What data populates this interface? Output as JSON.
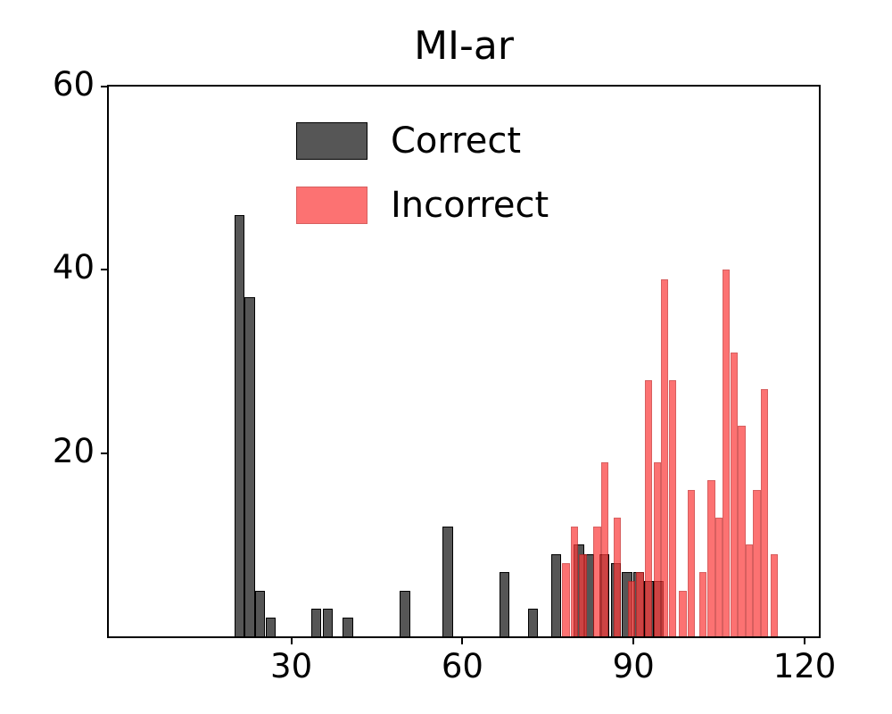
{
  "chart_data": {
    "type": "histogram",
    "title": "MI-ar",
    "xlabel": "",
    "ylabel": "",
    "xlim": [
      -2,
      122.5
    ],
    "ylim": [
      0,
      60
    ],
    "xticks": [
      30,
      60,
      90,
      120
    ],
    "yticks": [
      20,
      40,
      60
    ],
    "grid": false,
    "legend_position": "upper center-left inside",
    "series": [
      {
        "name": "Correct",
        "color": "#565656",
        "edge_color": "#000000",
        "opacity": 1,
        "bin_width": 1.8,
        "bars": [
          {
            "x": 20.0,
            "v": 46
          },
          {
            "x": 21.8,
            "v": 37
          },
          {
            "x": 23.6,
            "v": 5
          },
          {
            "x": 25.5,
            "v": 2
          },
          {
            "x": 33.5,
            "v": 3
          },
          {
            "x": 35.5,
            "v": 3
          },
          {
            "x": 39.0,
            "v": 2
          },
          {
            "x": 49.0,
            "v": 5
          },
          {
            "x": 56.5,
            "v": 12
          },
          {
            "x": 66.5,
            "v": 7
          },
          {
            "x": 71.5,
            "v": 3
          },
          {
            "x": 75.5,
            "v": 9
          },
          {
            "x": 79.5,
            "v": 10
          },
          {
            "x": 81.3,
            "v": 9
          },
          {
            "x": 84.0,
            "v": 9
          },
          {
            "x": 86.0,
            "v": 8
          },
          {
            "x": 88.0,
            "v": 7
          },
          {
            "x": 90.0,
            "v": 7
          },
          {
            "x": 91.8,
            "v": 6
          },
          {
            "x": 93.5,
            "v": 6
          }
        ]
      },
      {
        "name": "Incorrect",
        "color": "#fc3d3d",
        "edge_color": "#c92222",
        "opacity": 0.72,
        "bin_width": 1.3,
        "bars": [
          {
            "x": 77.5,
            "v": 8
          },
          {
            "x": 79.0,
            "v": 12
          },
          {
            "x": 80.5,
            "v": 9
          },
          {
            "x": 83.0,
            "v": 12
          },
          {
            "x": 84.3,
            "v": 19
          },
          {
            "x": 86.5,
            "v": 13
          },
          {
            "x": 89.0,
            "v": 6
          },
          {
            "x": 90.5,
            "v": 7
          },
          {
            "x": 92.0,
            "v": 28
          },
          {
            "x": 93.5,
            "v": 19
          },
          {
            "x": 94.8,
            "v": 39
          },
          {
            "x": 96.2,
            "v": 28
          },
          {
            "x": 98.0,
            "v": 5
          },
          {
            "x": 99.5,
            "v": 16
          },
          {
            "x": 101.5,
            "v": 7
          },
          {
            "x": 103.0,
            "v": 17
          },
          {
            "x": 104.3,
            "v": 13
          },
          {
            "x": 105.6,
            "v": 40
          },
          {
            "x": 107.0,
            "v": 31
          },
          {
            "x": 108.3,
            "v": 23
          },
          {
            "x": 109.6,
            "v": 10
          },
          {
            "x": 111.0,
            "v": 16
          },
          {
            "x": 112.3,
            "v": 27
          },
          {
            "x": 114.0,
            "v": 9
          }
        ]
      }
    ]
  },
  "legend": {
    "items": [
      {
        "label": "Correct"
      },
      {
        "label": "Incorrect"
      }
    ]
  }
}
